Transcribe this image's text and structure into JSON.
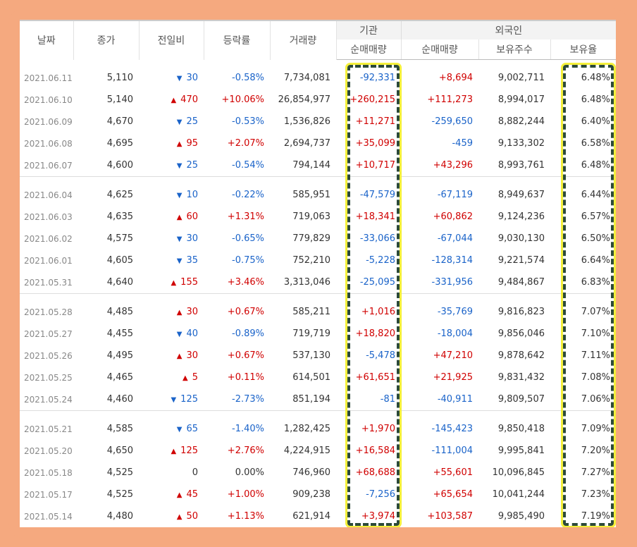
{
  "headers": {
    "date": "날짜",
    "close": "종가",
    "change": "전일비",
    "rate": "등락률",
    "volume": "거래량",
    "institution": "기관",
    "foreign": "외국인",
    "inst_net": "순매매량",
    "foreign_net": "순매매량",
    "foreign_shares": "보유주수",
    "foreign_ratio": "보유율"
  },
  "colors": {
    "up": "#d00000",
    "down": "#1a63c9",
    "highlight": "#f4f03a",
    "page_bg": "#f5a97f"
  },
  "groups": [
    [
      {
        "date": "2021.06.11",
        "close": "5,110",
        "dir": "down",
        "change": "30",
        "rate": "-0.58%",
        "volume": "7,734,081",
        "inst": "-92,331",
        "foreign_net": "+8,694",
        "shares": "9,002,711",
        "ratio": "6.48%"
      },
      {
        "date": "2021.06.10",
        "close": "5,140",
        "dir": "up",
        "change": "470",
        "rate": "+10.06%",
        "volume": "26,854,977",
        "inst": "+260,215",
        "foreign_net": "+111,273",
        "shares": "8,994,017",
        "ratio": "6.48%"
      },
      {
        "date": "2021.06.09",
        "close": "4,670",
        "dir": "down",
        "change": "25",
        "rate": "-0.53%",
        "volume": "1,536,826",
        "inst": "+11,271",
        "foreign_net": "-259,650",
        "shares": "8,882,244",
        "ratio": "6.40%"
      },
      {
        "date": "2021.06.08",
        "close": "4,695",
        "dir": "up",
        "change": "95",
        "rate": "+2.07%",
        "volume": "2,694,737",
        "inst": "+35,099",
        "foreign_net": "-459",
        "shares": "9,133,302",
        "ratio": "6.58%"
      },
      {
        "date": "2021.06.07",
        "close": "4,600",
        "dir": "down",
        "change": "25",
        "rate": "-0.54%",
        "volume": "794,144",
        "inst": "+10,717",
        "foreign_net": "+43,296",
        "shares": "8,993,761",
        "ratio": "6.48%"
      }
    ],
    [
      {
        "date": "2021.06.04",
        "close": "4,625",
        "dir": "down",
        "change": "10",
        "rate": "-0.22%",
        "volume": "585,951",
        "inst": "-47,579",
        "foreign_net": "-67,119",
        "shares": "8,949,637",
        "ratio": "6.44%"
      },
      {
        "date": "2021.06.03",
        "close": "4,635",
        "dir": "up",
        "change": "60",
        "rate": "+1.31%",
        "volume": "719,063",
        "inst": "+18,341",
        "foreign_net": "+60,862",
        "shares": "9,124,236",
        "ratio": "6.57%"
      },
      {
        "date": "2021.06.02",
        "close": "4,575",
        "dir": "down",
        "change": "30",
        "rate": "-0.65%",
        "volume": "779,829",
        "inst": "-33,066",
        "foreign_net": "-67,044",
        "shares": "9,030,130",
        "ratio": "6.50%"
      },
      {
        "date": "2021.06.01",
        "close": "4,605",
        "dir": "down",
        "change": "35",
        "rate": "-0.75%",
        "volume": "752,210",
        "inst": "-5,228",
        "foreign_net": "-128,314",
        "shares": "9,221,574",
        "ratio": "6.64%"
      },
      {
        "date": "2021.05.31",
        "close": "4,640",
        "dir": "up",
        "change": "155",
        "rate": "+3.46%",
        "volume": "3,313,046",
        "inst": "-25,095",
        "foreign_net": "-331,956",
        "shares": "9,484,867",
        "ratio": "6.83%"
      }
    ],
    [
      {
        "date": "2021.05.28",
        "close": "4,485",
        "dir": "up",
        "change": "30",
        "rate": "+0.67%",
        "volume": "585,211",
        "inst": "+1,016",
        "foreign_net": "-35,769",
        "shares": "9,816,823",
        "ratio": "7.07%"
      },
      {
        "date": "2021.05.27",
        "close": "4,455",
        "dir": "down",
        "change": "40",
        "rate": "-0.89%",
        "volume": "719,719",
        "inst": "+18,820",
        "foreign_net": "-18,004",
        "shares": "9,856,046",
        "ratio": "7.10%"
      },
      {
        "date": "2021.05.26",
        "close": "4,495",
        "dir": "up",
        "change": "30",
        "rate": "+0.67%",
        "volume": "537,130",
        "inst": "-5,478",
        "foreign_net": "+47,210",
        "shares": "9,878,642",
        "ratio": "7.11%"
      },
      {
        "date": "2021.05.25",
        "close": "4,465",
        "dir": "up",
        "change": "5",
        "rate": "+0.11%",
        "volume": "614,501",
        "inst": "+61,651",
        "foreign_net": "+21,925",
        "shares": "9,831,432",
        "ratio": "7.08%"
      },
      {
        "date": "2021.05.24",
        "close": "4,460",
        "dir": "down",
        "change": "125",
        "rate": "-2.73%",
        "volume": "851,194",
        "inst": "-81",
        "foreign_net": "-40,911",
        "shares": "9,809,507",
        "ratio": "7.06%"
      }
    ],
    [
      {
        "date": "2021.05.21",
        "close": "4,585",
        "dir": "down",
        "change": "65",
        "rate": "-1.40%",
        "volume": "1,282,425",
        "inst": "+1,970",
        "foreign_net": "-145,423",
        "shares": "9,850,418",
        "ratio": "7.09%"
      },
      {
        "date": "2021.05.20",
        "close": "4,650",
        "dir": "up",
        "change": "125",
        "rate": "+2.76%",
        "volume": "4,224,915",
        "inst": "+16,584",
        "foreign_net": "-111,004",
        "shares": "9,995,841",
        "ratio": "7.20%"
      },
      {
        "date": "2021.05.18",
        "close": "4,525",
        "dir": "flat",
        "change": "0",
        "rate": "0.00%",
        "volume": "746,960",
        "inst": "+68,688",
        "foreign_net": "+55,601",
        "shares": "10,096,845",
        "ratio": "7.27%"
      },
      {
        "date": "2021.05.17",
        "close": "4,525",
        "dir": "up",
        "change": "45",
        "rate": "+1.00%",
        "volume": "909,238",
        "inst": "-7,256",
        "foreign_net": "+65,654",
        "shares": "10,041,244",
        "ratio": "7.23%"
      },
      {
        "date": "2021.05.14",
        "close": "4,480",
        "dir": "up",
        "change": "50",
        "rate": "+1.13%",
        "volume": "621,914",
        "inst": "+3,974",
        "foreign_net": "+103,587",
        "shares": "9,985,490",
        "ratio": "7.19%"
      }
    ]
  ]
}
